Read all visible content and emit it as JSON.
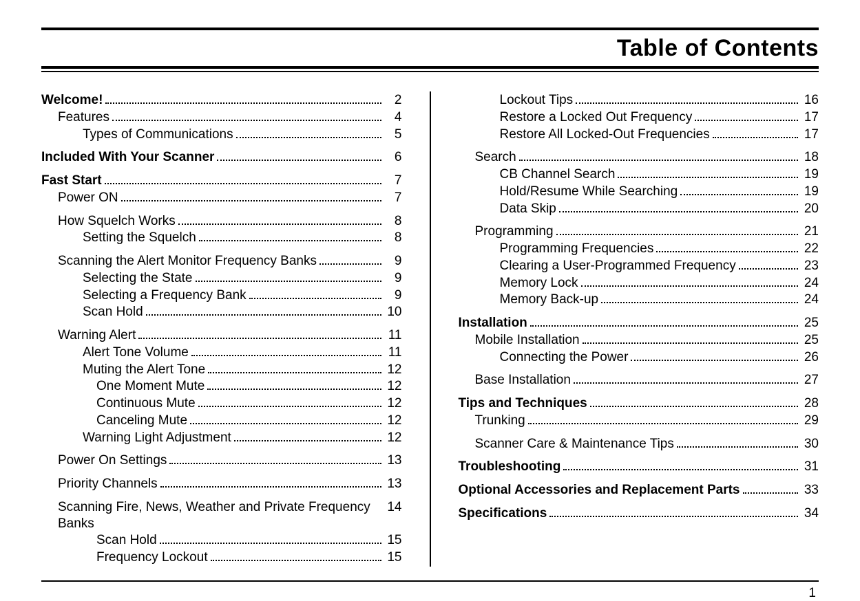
{
  "title": "Table of Contents",
  "page_number": "1",
  "colors": {
    "text": "#000000",
    "background": "#ffffff"
  },
  "typography": {
    "title_fontsize": 34,
    "title_weight": 900,
    "entry_fontsize": 19
  },
  "left": [
    {
      "label": "Welcome!",
      "page": "2",
      "bold": true,
      "indent": 0
    },
    {
      "label": "Features",
      "page": "4",
      "indent": 1
    },
    {
      "label": "Types of Communications",
      "page": "5",
      "indent": 2
    },
    {
      "gap": true
    },
    {
      "label": "Included With Your Scanner",
      "page": "6",
      "bold": true,
      "indent": 0
    },
    {
      "gap": true
    },
    {
      "label": "Fast Start",
      "page": "7",
      "bold": true,
      "indent": 0
    },
    {
      "label": "Power ON",
      "page": "7",
      "indent": 1
    },
    {
      "gap": true
    },
    {
      "label": "How Squelch Works",
      "page": "8",
      "indent": 1
    },
    {
      "label": "Setting the Squelch",
      "page": "8",
      "indent": 2
    },
    {
      "gap": true
    },
    {
      "label": "Scanning the Alert Monitor Frequency Banks",
      "page": "9",
      "indent": 1
    },
    {
      "label": "Selecting the State",
      "page": "9",
      "indent": 2
    },
    {
      "label": "Selecting a Frequency Bank",
      "page": "9",
      "indent": 2
    },
    {
      "label": "Scan Hold",
      "page": "10",
      "indent": 2
    },
    {
      "gap": true
    },
    {
      "label": "Warning Alert",
      "page": "11",
      "indent": 1
    },
    {
      "label": "Alert Tone Volume",
      "page": "11",
      "indent": 2
    },
    {
      "label": "Muting the Alert Tone",
      "page": "12",
      "indent": 2
    },
    {
      "label": "One Moment Mute",
      "page": "12",
      "indent": 3
    },
    {
      "label": "Continuous Mute",
      "page": "12",
      "indent": 3
    },
    {
      "label": "Canceling Mute",
      "page": "12",
      "indent": 3
    },
    {
      "label": "Warning Light Adjustment",
      "page": "12",
      "indent": 2
    },
    {
      "gap": true
    },
    {
      "label": "Power On Settings",
      "page": "13",
      "indent": 1
    },
    {
      "gap": true
    },
    {
      "label": "Priority Channels",
      "page": "13",
      "indent": 1
    },
    {
      "gap": true
    },
    {
      "label": "Scanning Fire, News, Weather and Private Frequency Banks",
      "page": "14",
      "indent": 1,
      "wrap": true
    },
    {
      "label": "Scan Hold",
      "page": "15",
      "indent": 3
    },
    {
      "label": "Frequency Lockout",
      "page": "15",
      "indent": 3
    }
  ],
  "right": [
    {
      "label": "Lockout Tips",
      "page": "16",
      "indent": 2
    },
    {
      "label": "Restore a Locked Out Frequency",
      "page": "17",
      "indent": 2
    },
    {
      "label": "Restore All Locked-Out Frequencies",
      "page": "17",
      "indent": 2
    },
    {
      "gap": true
    },
    {
      "label": "Search",
      "page": "18",
      "indent": 1
    },
    {
      "label": "CB Channel Search",
      "page": "19",
      "indent": 2
    },
    {
      "label": "Hold/Resume While Searching",
      "page": "19",
      "indent": 2
    },
    {
      "label": "Data Skip",
      "page": "20",
      "indent": 2
    },
    {
      "gap": true
    },
    {
      "label": "Programming",
      "page": "21",
      "indent": 1
    },
    {
      "label": "Programming Frequencies",
      "page": "22",
      "indent": 2
    },
    {
      "label": "Clearing a User-Programmed Frequency",
      "page": "23",
      "indent": 2
    },
    {
      "label": "Memory Lock",
      "page": "24",
      "indent": 2
    },
    {
      "label": "Memory Back-up",
      "page": "24",
      "indent": 2
    },
    {
      "gap": true
    },
    {
      "label": "Installation",
      "page": "25",
      "bold": true,
      "indent": 0
    },
    {
      "label": "Mobile Installation",
      "page": "25",
      "indent": 1
    },
    {
      "label": "Connecting the Power",
      "page": "26",
      "indent": 2
    },
    {
      "gap": true
    },
    {
      "label": "Base Installation",
      "page": "27",
      "indent": 1
    },
    {
      "gap": true
    },
    {
      "label": "Tips and Techniques",
      "page": "28",
      "bold": true,
      "indent": 0
    },
    {
      "label": "Trunking",
      "page": "29",
      "indent": 1
    },
    {
      "gap": true
    },
    {
      "label": "Scanner Care & Maintenance Tips",
      "page": "30",
      "indent": 1
    },
    {
      "gap": true
    },
    {
      "label": "Troubleshooting",
      "page": "31",
      "bold": true,
      "indent": 0
    },
    {
      "gap": true
    },
    {
      "label": "Optional Accessories and Replacement Parts",
      "page": "33",
      "bold": true,
      "indent": 0
    },
    {
      "gap": true
    },
    {
      "label": "Specifications",
      "page": "34",
      "bold": true,
      "indent": 0
    }
  ]
}
